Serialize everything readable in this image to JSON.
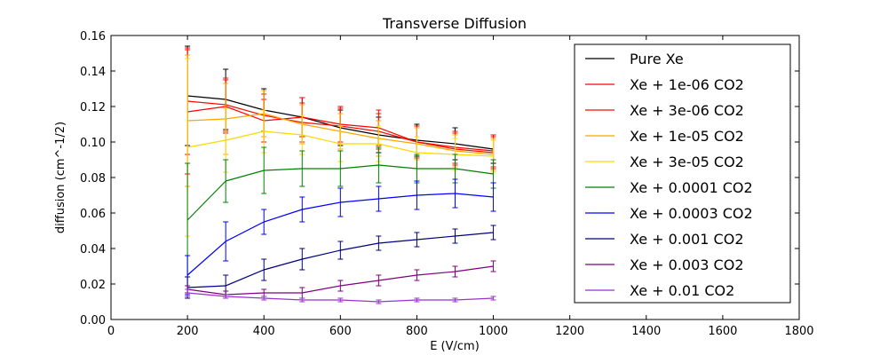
{
  "chart_data": {
    "type": "line",
    "title": "Transverse Diffusion",
    "xlabel": "E (V/cm)",
    "ylabel": "diffusion (cm^-1/2)",
    "xlim": [
      0,
      1800
    ],
    "ylim": [
      0.0,
      0.16
    ],
    "x_ticks": [
      "0",
      "200",
      "400",
      "600",
      "800",
      "1000",
      "1200",
      "1400",
      "1600",
      "1800"
    ],
    "y_ticks": [
      "0.00",
      "0.02",
      "0.04",
      "0.06",
      "0.08",
      "0.10",
      "0.12",
      "0.14",
      "0.16"
    ],
    "grid": false,
    "legend_position": "right",
    "x": [
      200,
      300,
      400,
      500,
      600,
      700,
      800,
      900,
      1000
    ],
    "series": [
      {
        "name": "Pure Xe",
        "color": "#000000",
        "values": [
          0.126,
          0.124,
          0.118,
          0.114,
          0.108,
          0.104,
          0.101,
          0.099,
          0.096
        ],
        "errors": [
          0.028,
          0.017,
          0.012,
          0.011,
          0.01,
          0.01,
          0.009,
          0.009,
          0.008
        ]
      },
      {
        "name": "Xe + 1e-06 CO2",
        "color": "#ff0000",
        "values": [
          0.117,
          0.12,
          0.112,
          0.114,
          0.11,
          0.108,
          0.1,
          0.097,
          0.095
        ],
        "errors": [
          0.035,
          0.015,
          0.012,
          0.011,
          0.01,
          0.01,
          0.009,
          0.009,
          0.009
        ]
      },
      {
        "name": "Xe + 3e-06 CO2",
        "color": "#ee1100",
        "values": [
          0.123,
          0.121,
          0.115,
          0.111,
          0.109,
          0.106,
          0.1,
          0.096,
          0.094
        ],
        "errors": [
          0.03,
          0.015,
          0.012,
          0.011,
          0.01,
          0.01,
          0.009,
          0.009,
          0.009
        ]
      },
      {
        "name": "Xe + 1e-05 CO2",
        "color": "#ffa500",
        "values": [
          0.112,
          0.113,
          0.116,
          0.11,
          0.106,
          0.102,
          0.099,
          0.095,
          0.093
        ],
        "errors": [
          0.037,
          0.02,
          0.013,
          0.011,
          0.01,
          0.01,
          0.009,
          0.009,
          0.009
        ]
      },
      {
        "name": "Xe + 3e-05 CO2",
        "color": "#ffd700",
        "values": [
          0.097,
          0.101,
          0.106,
          0.104,
          0.099,
          0.099,
          0.094,
          0.093,
          0.092
        ],
        "errors": [
          0.05,
          0.018,
          0.012,
          0.011,
          0.01,
          0.01,
          0.009,
          0.009,
          0.009
        ]
      },
      {
        "name": "Xe + 0.0001 CO2",
        "color": "#008000",
        "values": [
          0.056,
          0.078,
          0.084,
          0.085,
          0.085,
          0.087,
          0.085,
          0.085,
          0.082
        ],
        "errors": [
          0.032,
          0.012,
          0.013,
          0.01,
          0.01,
          0.01,
          0.008,
          0.008,
          0.008
        ]
      },
      {
        "name": "Xe + 0.0003 CO2",
        "color": "#0000ff",
        "values": [
          0.025,
          0.044,
          0.055,
          0.062,
          0.066,
          0.068,
          0.07,
          0.071,
          0.069
        ],
        "errors": [
          0.011,
          0.011,
          0.007,
          0.007,
          0.008,
          0.007,
          0.008,
          0.008,
          0.008
        ]
      },
      {
        "name": "Xe + 0.001 CO2",
        "color": "#000080",
        "values": [
          0.018,
          0.019,
          0.028,
          0.034,
          0.039,
          0.043,
          0.045,
          0.047,
          0.049
        ],
        "errors": [
          0.006,
          0.006,
          0.006,
          0.006,
          0.005,
          0.004,
          0.004,
          0.004,
          0.004
        ]
      },
      {
        "name": "Xe + 0.003 CO2",
        "color": "#800080",
        "values": [
          0.017,
          0.014,
          0.015,
          0.015,
          0.019,
          0.022,
          0.025,
          0.027,
          0.03
        ],
        "errors": [
          0.002,
          0.002,
          0.002,
          0.003,
          0.003,
          0.003,
          0.003,
          0.003,
          0.003
        ]
      },
      {
        "name": "Xe + 0.01 CO2",
        "color": "#9932cc",
        "values": [
          0.015,
          0.013,
          0.012,
          0.011,
          0.011,
          0.01,
          0.011,
          0.011,
          0.012
        ],
        "errors": [
          0.002,
          0.001,
          0.001,
          0.001,
          0.001,
          0.001,
          0.001,
          0.001,
          0.001
        ]
      }
    ]
  }
}
